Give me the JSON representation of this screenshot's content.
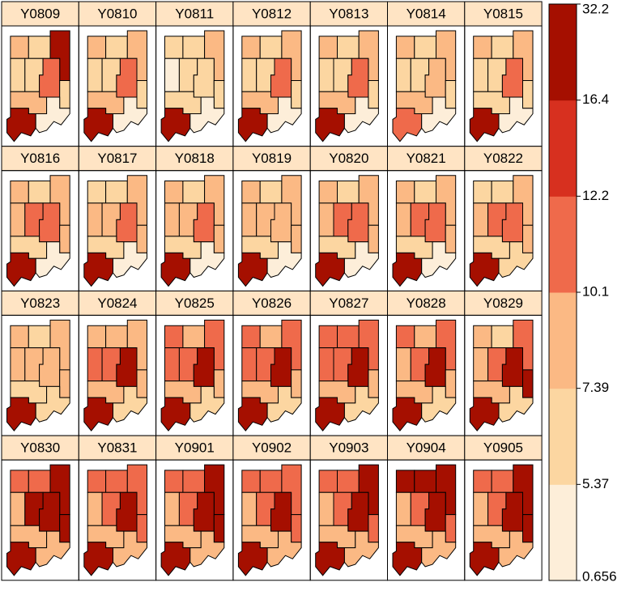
{
  "chart_data": {
    "type": "choropleth",
    "panels": [
      {
        "title": "Y0809",
        "values": [
          8.8,
          6.3,
          22.0,
          6.3,
          6.3,
          11.1,
          6.3,
          8.8,
          22.0,
          3.2
        ]
      },
      {
        "title": "Y0810",
        "values": [
          8.8,
          6.3,
          8.8,
          6.3,
          6.3,
          11.1,
          6.3,
          8.8,
          22.0,
          3.2
        ]
      },
      {
        "title": "Y0811",
        "values": [
          6.3,
          6.3,
          8.8,
          3.2,
          6.3,
          6.3,
          6.3,
          6.3,
          22.0,
          3.2
        ]
      },
      {
        "title": "Y0812",
        "values": [
          8.8,
          6.3,
          8.8,
          6.3,
          6.3,
          11.1,
          6.3,
          8.8,
          22.0,
          3.2
        ]
      },
      {
        "title": "Y0813",
        "values": [
          8.8,
          6.3,
          8.8,
          6.3,
          6.3,
          11.1,
          6.3,
          8.8,
          22.0,
          3.2
        ]
      },
      {
        "title": "Y0814",
        "values": [
          8.8,
          6.3,
          8.8,
          6.3,
          6.3,
          8.8,
          6.3,
          8.8,
          11.1,
          3.2
        ]
      },
      {
        "title": "Y0815",
        "values": [
          8.8,
          6.3,
          8.8,
          6.3,
          6.3,
          11.1,
          6.3,
          6.3,
          22.0,
          3.2
        ]
      },
      {
        "title": "Y0816",
        "values": [
          8.8,
          6.3,
          8.8,
          8.8,
          11.1,
          11.1,
          8.8,
          6.3,
          22.0,
          3.2
        ]
      },
      {
        "title": "Y0817",
        "values": [
          6.3,
          6.3,
          8.8,
          8.8,
          8.8,
          11.1,
          8.8,
          6.3,
          22.0,
          3.2
        ]
      },
      {
        "title": "Y0818",
        "values": [
          8.8,
          6.3,
          8.8,
          8.8,
          8.8,
          11.1,
          8.8,
          6.3,
          22.0,
          3.2
        ]
      },
      {
        "title": "Y0819",
        "values": [
          8.8,
          6.3,
          8.8,
          8.8,
          8.8,
          8.8,
          8.8,
          6.3,
          22.0,
          3.2
        ]
      },
      {
        "title": "Y0820",
        "values": [
          8.8,
          6.3,
          8.8,
          8.8,
          11.1,
          11.1,
          8.8,
          6.3,
          22.0,
          3.2
        ]
      },
      {
        "title": "Y0821",
        "values": [
          8.8,
          6.3,
          8.8,
          8.8,
          11.1,
          11.1,
          8.8,
          6.3,
          22.0,
          3.2
        ]
      },
      {
        "title": "Y0822",
        "values": [
          6.3,
          6.3,
          8.8,
          8.8,
          11.1,
          11.1,
          8.8,
          6.3,
          22.0,
          6.3
        ]
      },
      {
        "title": "Y0823",
        "values": [
          8.8,
          6.3,
          8.8,
          8.8,
          8.8,
          8.8,
          8.8,
          6.3,
          22.0,
          6.3
        ]
      },
      {
        "title": "Y0824",
        "values": [
          8.8,
          8.8,
          8.8,
          11.1,
          11.1,
          22.0,
          8.8,
          8.8,
          22.0,
          6.3
        ]
      },
      {
        "title": "Y0825",
        "values": [
          11.1,
          8.8,
          11.1,
          11.1,
          11.1,
          22.0,
          8.8,
          8.8,
          22.0,
          6.3
        ]
      },
      {
        "title": "Y0826",
        "values": [
          11.1,
          8.8,
          11.1,
          11.1,
          11.1,
          22.0,
          8.8,
          8.8,
          22.0,
          6.3
        ]
      },
      {
        "title": "Y0827",
        "values": [
          11.1,
          11.1,
          11.1,
          11.1,
          11.1,
          22.0,
          8.8,
          8.8,
          22.0,
          6.3
        ]
      },
      {
        "title": "Y0828",
        "values": [
          11.1,
          8.8,
          11.1,
          8.8,
          11.1,
          22.0,
          8.8,
          8.8,
          22.0,
          6.3
        ]
      },
      {
        "title": "Y0829",
        "values": [
          8.8,
          6.3,
          11.1,
          8.8,
          11.1,
          22.0,
          22.0,
          8.8,
          22.0,
          6.3
        ]
      },
      {
        "title": "Y0830",
        "values": [
          11.1,
          11.1,
          22.0,
          8.8,
          22.0,
          22.0,
          22.0,
          8.8,
          22.0,
          8.8
        ]
      },
      {
        "title": "Y0831",
        "values": [
          11.1,
          11.1,
          11.1,
          8.8,
          11.1,
          22.0,
          11.1,
          8.8,
          22.0,
          8.8
        ]
      },
      {
        "title": "Y0901",
        "values": [
          11.1,
          11.1,
          22.0,
          8.8,
          11.1,
          22.0,
          22.0,
          8.8,
          22.0,
          8.8
        ]
      },
      {
        "title": "Y0902",
        "values": [
          11.1,
          11.1,
          11.1,
          8.8,
          11.1,
          22.0,
          11.1,
          8.8,
          22.0,
          8.8
        ]
      },
      {
        "title": "Y0903",
        "values": [
          11.1,
          11.1,
          22.0,
          8.8,
          11.1,
          22.0,
          11.1,
          8.8,
          22.0,
          8.8
        ]
      },
      {
        "title": "Y0904",
        "values": [
          22.0,
          22.0,
          22.0,
          8.8,
          11.1,
          22.0,
          11.1,
          8.8,
          22.0,
          8.8
        ]
      },
      {
        "title": "Y0905",
        "values": [
          11.1,
          11.1,
          22.0,
          8.8,
          11.1,
          22.0,
          22.0,
          8.8,
          22.0,
          8.8
        ]
      }
    ],
    "breaks": [
      0.656,
      5.37,
      7.39,
      10.1,
      12.2,
      16.4,
      32.2
    ],
    "colors": [
      "#fdeed9",
      "#fcd6a1",
      "#fbb984",
      "#ef6a4b",
      "#d7301f",
      "#a50f00"
    ]
  }
}
